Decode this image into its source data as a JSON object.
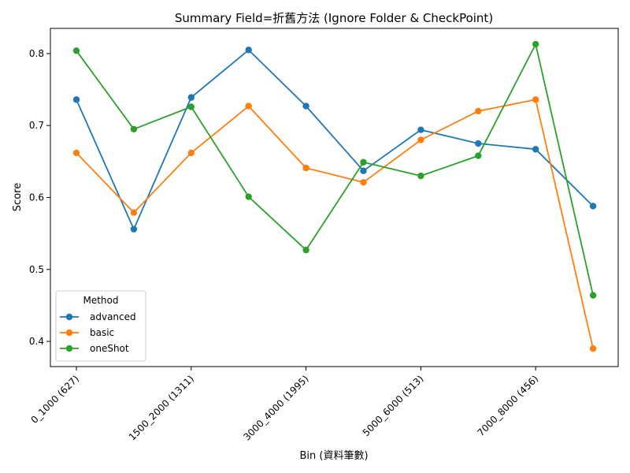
{
  "chart_data": {
    "type": "line",
    "title": "Summary Field=折舊方法 (Ignore Folder & CheckPoint)",
    "xlabel": "Bin (資料筆數)",
    "ylabel": "Score",
    "categories": [
      "0_1000 (627)",
      "",
      "1500_2000 (1311)",
      "",
      "3000_4000 (1995)",
      "",
      "5000_6000 (513)",
      "",
      "7000_8000 (456)",
      ""
    ],
    "ylim": [
      0.365,
      0.835
    ],
    "yticks": [
      0.4,
      0.5,
      0.6,
      0.7,
      0.8
    ],
    "ytick_labels": [
      "0.4",
      "0.5",
      "0.6",
      "0.7",
      "0.8"
    ],
    "grid": false,
    "legend": {
      "title": "Method",
      "position": "lower-left"
    },
    "series": [
      {
        "name": "advanced",
        "color": "#1f77b4",
        "values": [
          0.736,
          0.556,
          0.739,
          0.805,
          0.727,
          0.637,
          0.694,
          0.675,
          0.667,
          0.588
        ]
      },
      {
        "name": "basic",
        "color": "#ff7f0e",
        "values": [
          0.662,
          0.579,
          0.662,
          0.727,
          0.641,
          0.621,
          0.68,
          0.72,
          0.736,
          0.39
        ]
      },
      {
        "name": "oneShot",
        "color": "#2ca02c",
        "values": [
          0.804,
          0.695,
          0.726,
          0.601,
          0.527,
          0.649,
          0.63,
          0.658,
          0.813,
          0.464
        ]
      }
    ]
  }
}
